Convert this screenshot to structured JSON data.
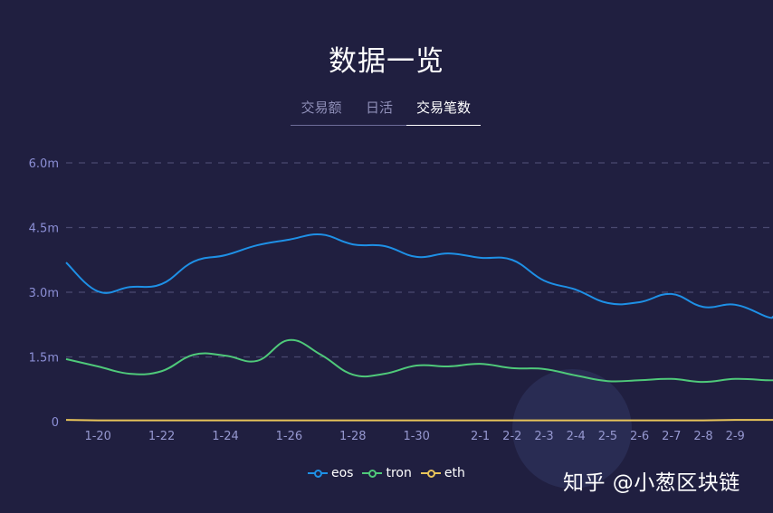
{
  "header": {
    "title": "数据一览"
  },
  "tabs": [
    {
      "label": "交易额",
      "active": false
    },
    {
      "label": "日活",
      "active": false
    },
    {
      "label": "交易笔数",
      "active": true
    }
  ],
  "colors": {
    "background": "#201f40",
    "eos": "#1e90e6",
    "tron": "#4fc97a",
    "eth": "#e8c45a",
    "grid": "#4a4970"
  },
  "watermark": {
    "text": "知乎 @小葱区块链"
  },
  "chart_data": {
    "type": "line",
    "title": "交易笔数",
    "xlabel": "",
    "ylabel": "",
    "ylim": [
      0,
      6.0
    ],
    "y_unit": "m",
    "y_ticks": [
      "0",
      "1.5m",
      "3.0m",
      "4.5m",
      "6.0m"
    ],
    "x_tick_labels": [
      "1-20",
      "1-22",
      "1-24",
      "1-26",
      "1-28",
      "1-30",
      "2-1",
      "2-2",
      "2-3",
      "2-4",
      "2-5",
      "2-6",
      "2-7",
      "2-8",
      "2-9"
    ],
    "grid": true,
    "legend_position": "bottom",
    "categories": [
      "1-19",
      "1-20",
      "1-21",
      "1-22",
      "1-23",
      "1-24",
      "1-25",
      "1-26",
      "1-27",
      "1-28",
      "1-29",
      "1-30",
      "1-31",
      "2-1",
      "2-2",
      "2-3",
      "2-4",
      "2-5",
      "2-6",
      "2-7",
      "2-8",
      "2-9",
      "2-10"
    ],
    "series": [
      {
        "name": "eos",
        "color": "#1e90e6",
        "values": [
          3.69,
          3.02,
          3.12,
          3.19,
          3.71,
          3.86,
          4.09,
          4.22,
          4.34,
          4.11,
          4.07,
          3.82,
          3.9,
          3.8,
          3.75,
          3.27,
          3.06,
          2.75,
          2.77,
          2.96,
          2.66,
          2.71,
          2.43
        ]
      },
      {
        "name": "tron",
        "color": "#4fc97a",
        "values": [
          1.45,
          1.28,
          1.11,
          1.17,
          1.55,
          1.53,
          1.41,
          1.89,
          1.55,
          1.09,
          1.11,
          1.3,
          1.28,
          1.34,
          1.24,
          1.22,
          1.07,
          0.94,
          0.96,
          0.99,
          0.92,
          0.99,
          0.96
        ]
      },
      {
        "name": "eth",
        "color": "#e8c45a",
        "values": [
          0.04,
          0.03,
          0.03,
          0.03,
          0.03,
          0.03,
          0.03,
          0.03,
          0.03,
          0.03,
          0.03,
          0.03,
          0.03,
          0.03,
          0.03,
          0.03,
          0.03,
          0.03,
          0.03,
          0.03,
          0.03,
          0.04,
          0.04
        ]
      }
    ]
  }
}
